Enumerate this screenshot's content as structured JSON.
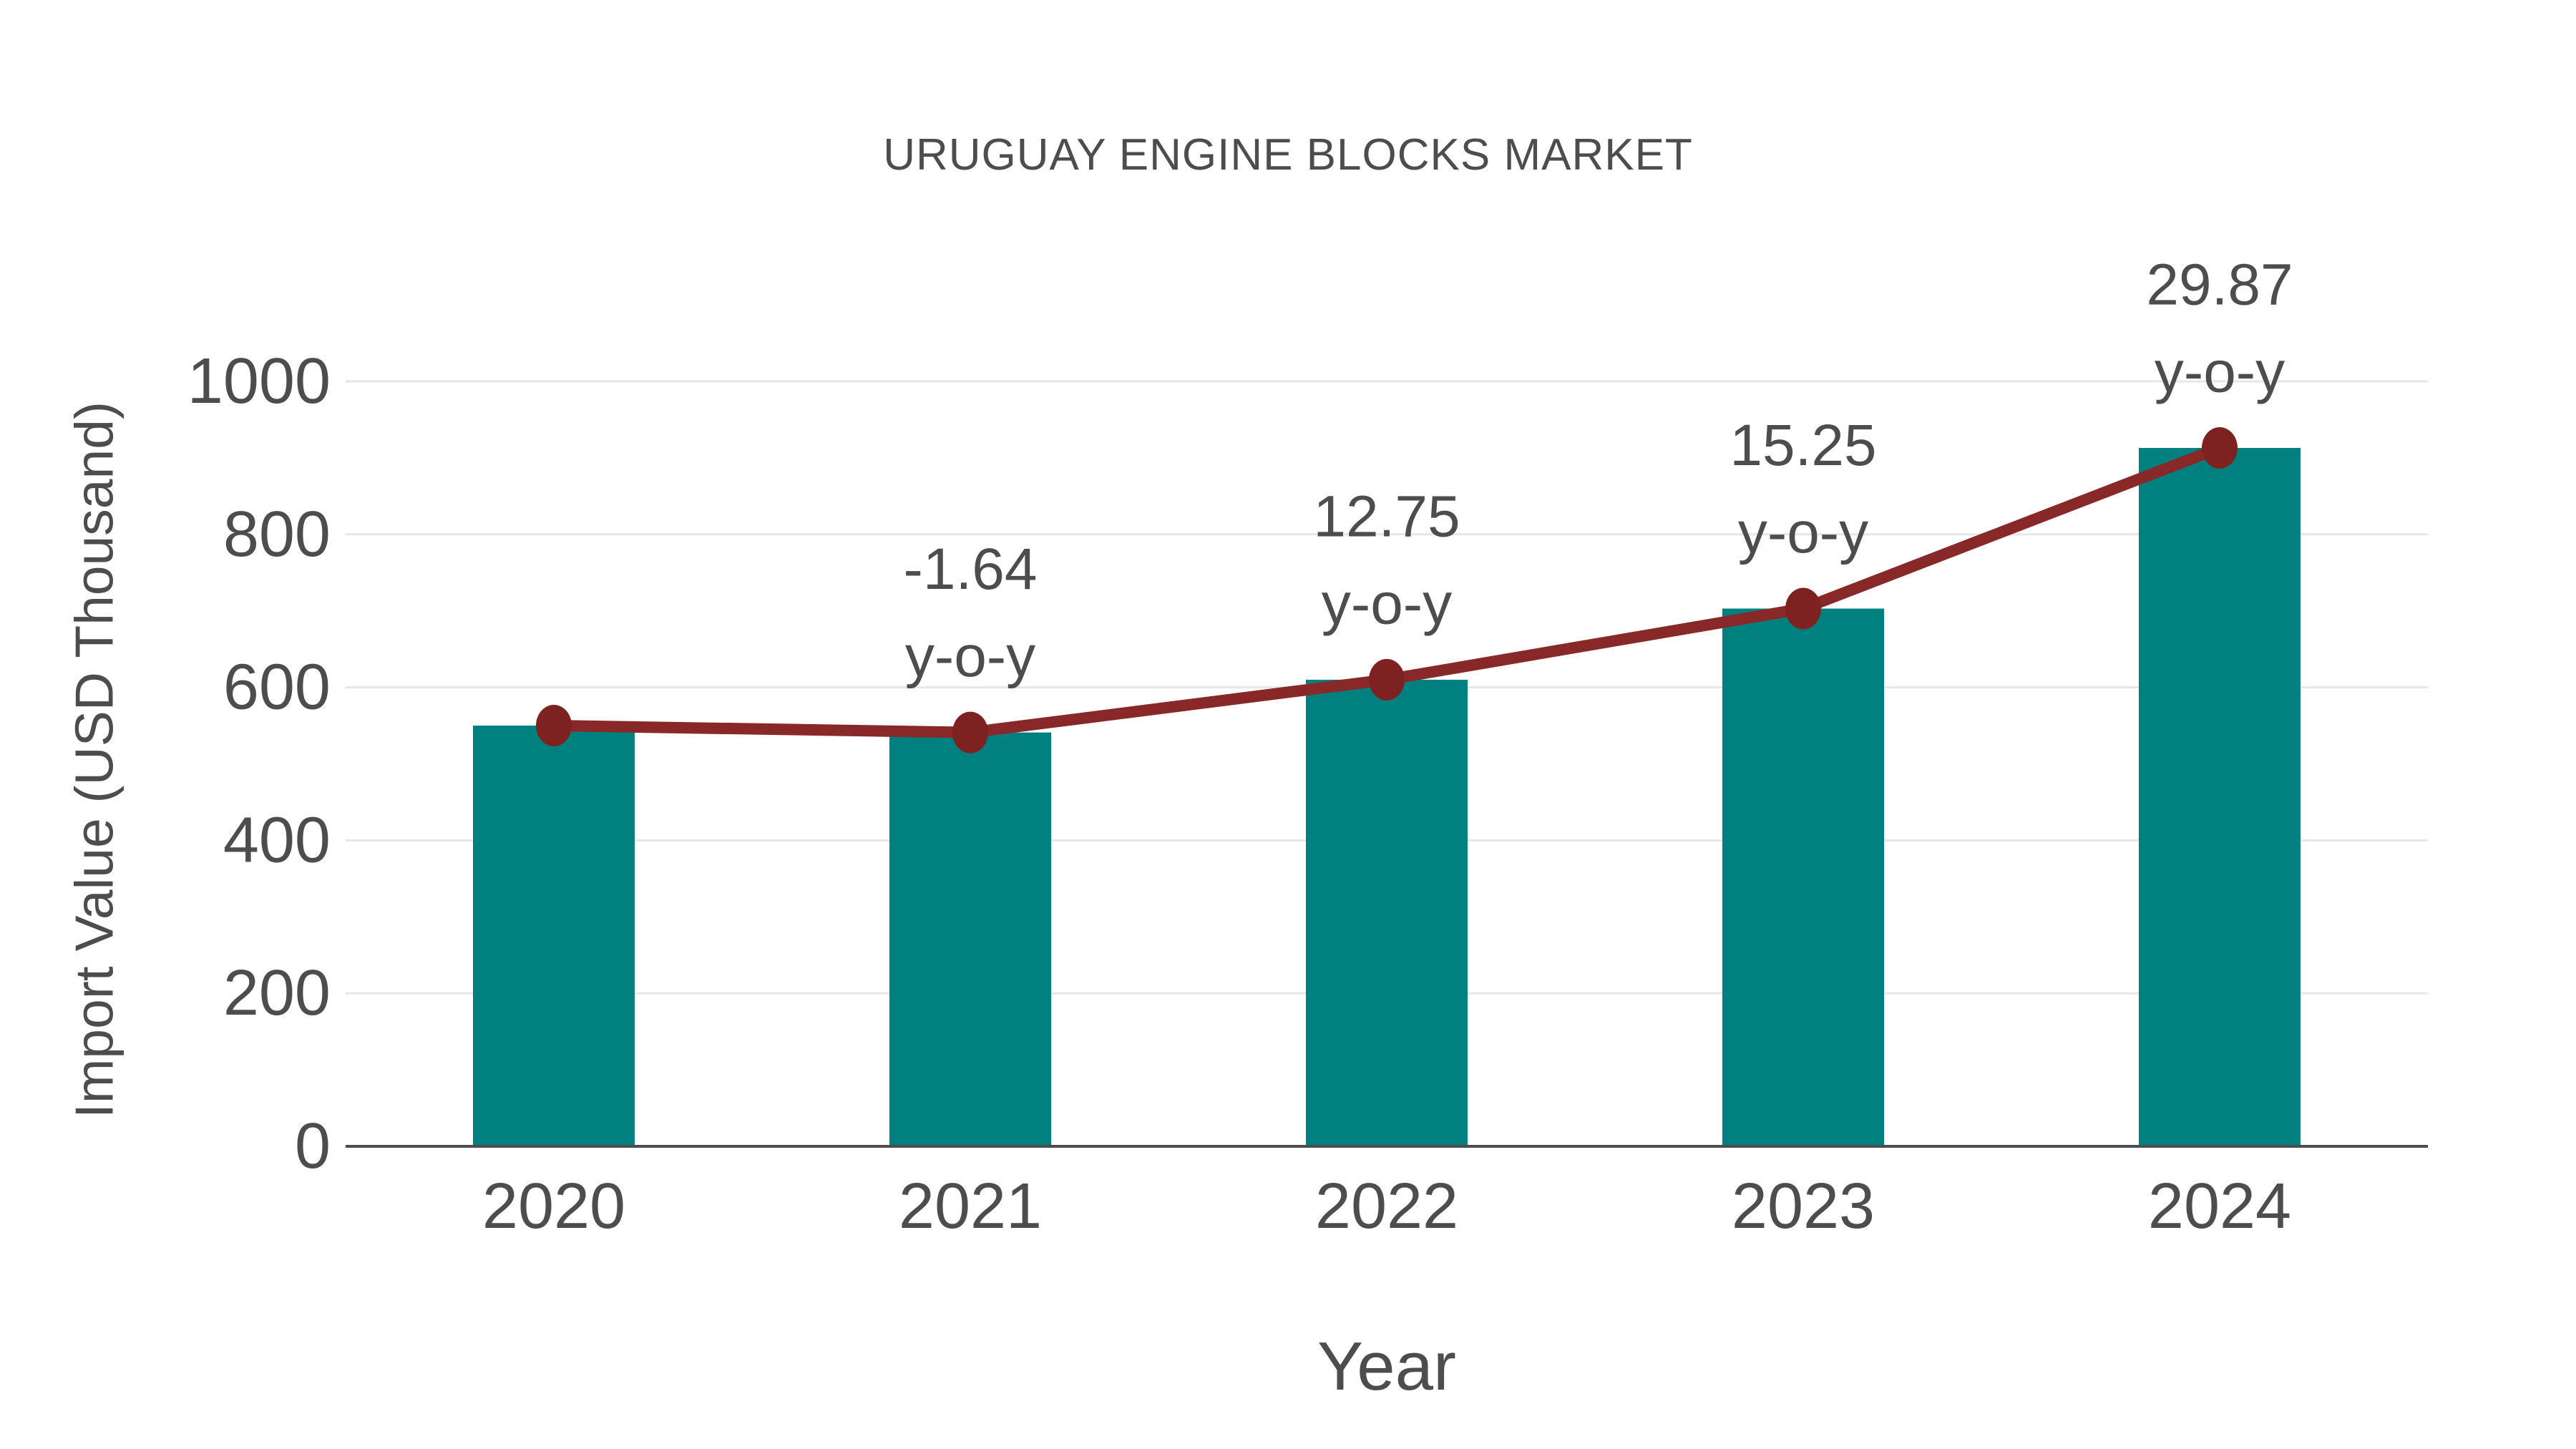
{
  "chart_data": {
    "type": "bar",
    "title": "URUGUAY ENGINE BLOCKS MARKET",
    "xlabel": "Year",
    "ylabel": "Import Value (USD Thousand)",
    "categories": [
      "2020",
      "2021",
      "2022",
      "2023",
      "2024"
    ],
    "series": [
      {
        "name": "Import Value bars",
        "type": "bar",
        "values": [
          550,
          541,
          610,
          703,
          913
        ]
      },
      {
        "name": "Import Value trend line",
        "type": "line",
        "values": [
          550,
          541,
          610,
          703,
          913
        ]
      }
    ],
    "annotations": [
      {
        "category": "2021",
        "value_label": "-1.64",
        "suffix_label": "y-o-y"
      },
      {
        "category": "2022",
        "value_label": "12.75",
        "suffix_label": "y-o-y"
      },
      {
        "category": "2023",
        "value_label": "15.25",
        "suffix_label": "y-o-y"
      },
      {
        "category": "2024",
        "value_label": "29.87",
        "suffix_label": "y-o-y"
      }
    ],
    "growth_yoy": [
      null,
      -1.64,
      12.75,
      15.25,
      29.87
    ],
    "ylim": [
      0,
      1000
    ],
    "yticks": [
      0,
      200,
      400,
      600,
      800,
      1000
    ],
    "grid": true,
    "legend": false,
    "colors": {
      "bar": "#00807E",
      "line": "#882828",
      "marker": "#7E2121",
      "grid": "#e7e7e7",
      "axis": "#4d4d4d",
      "text": "#4d4d4d"
    }
  }
}
